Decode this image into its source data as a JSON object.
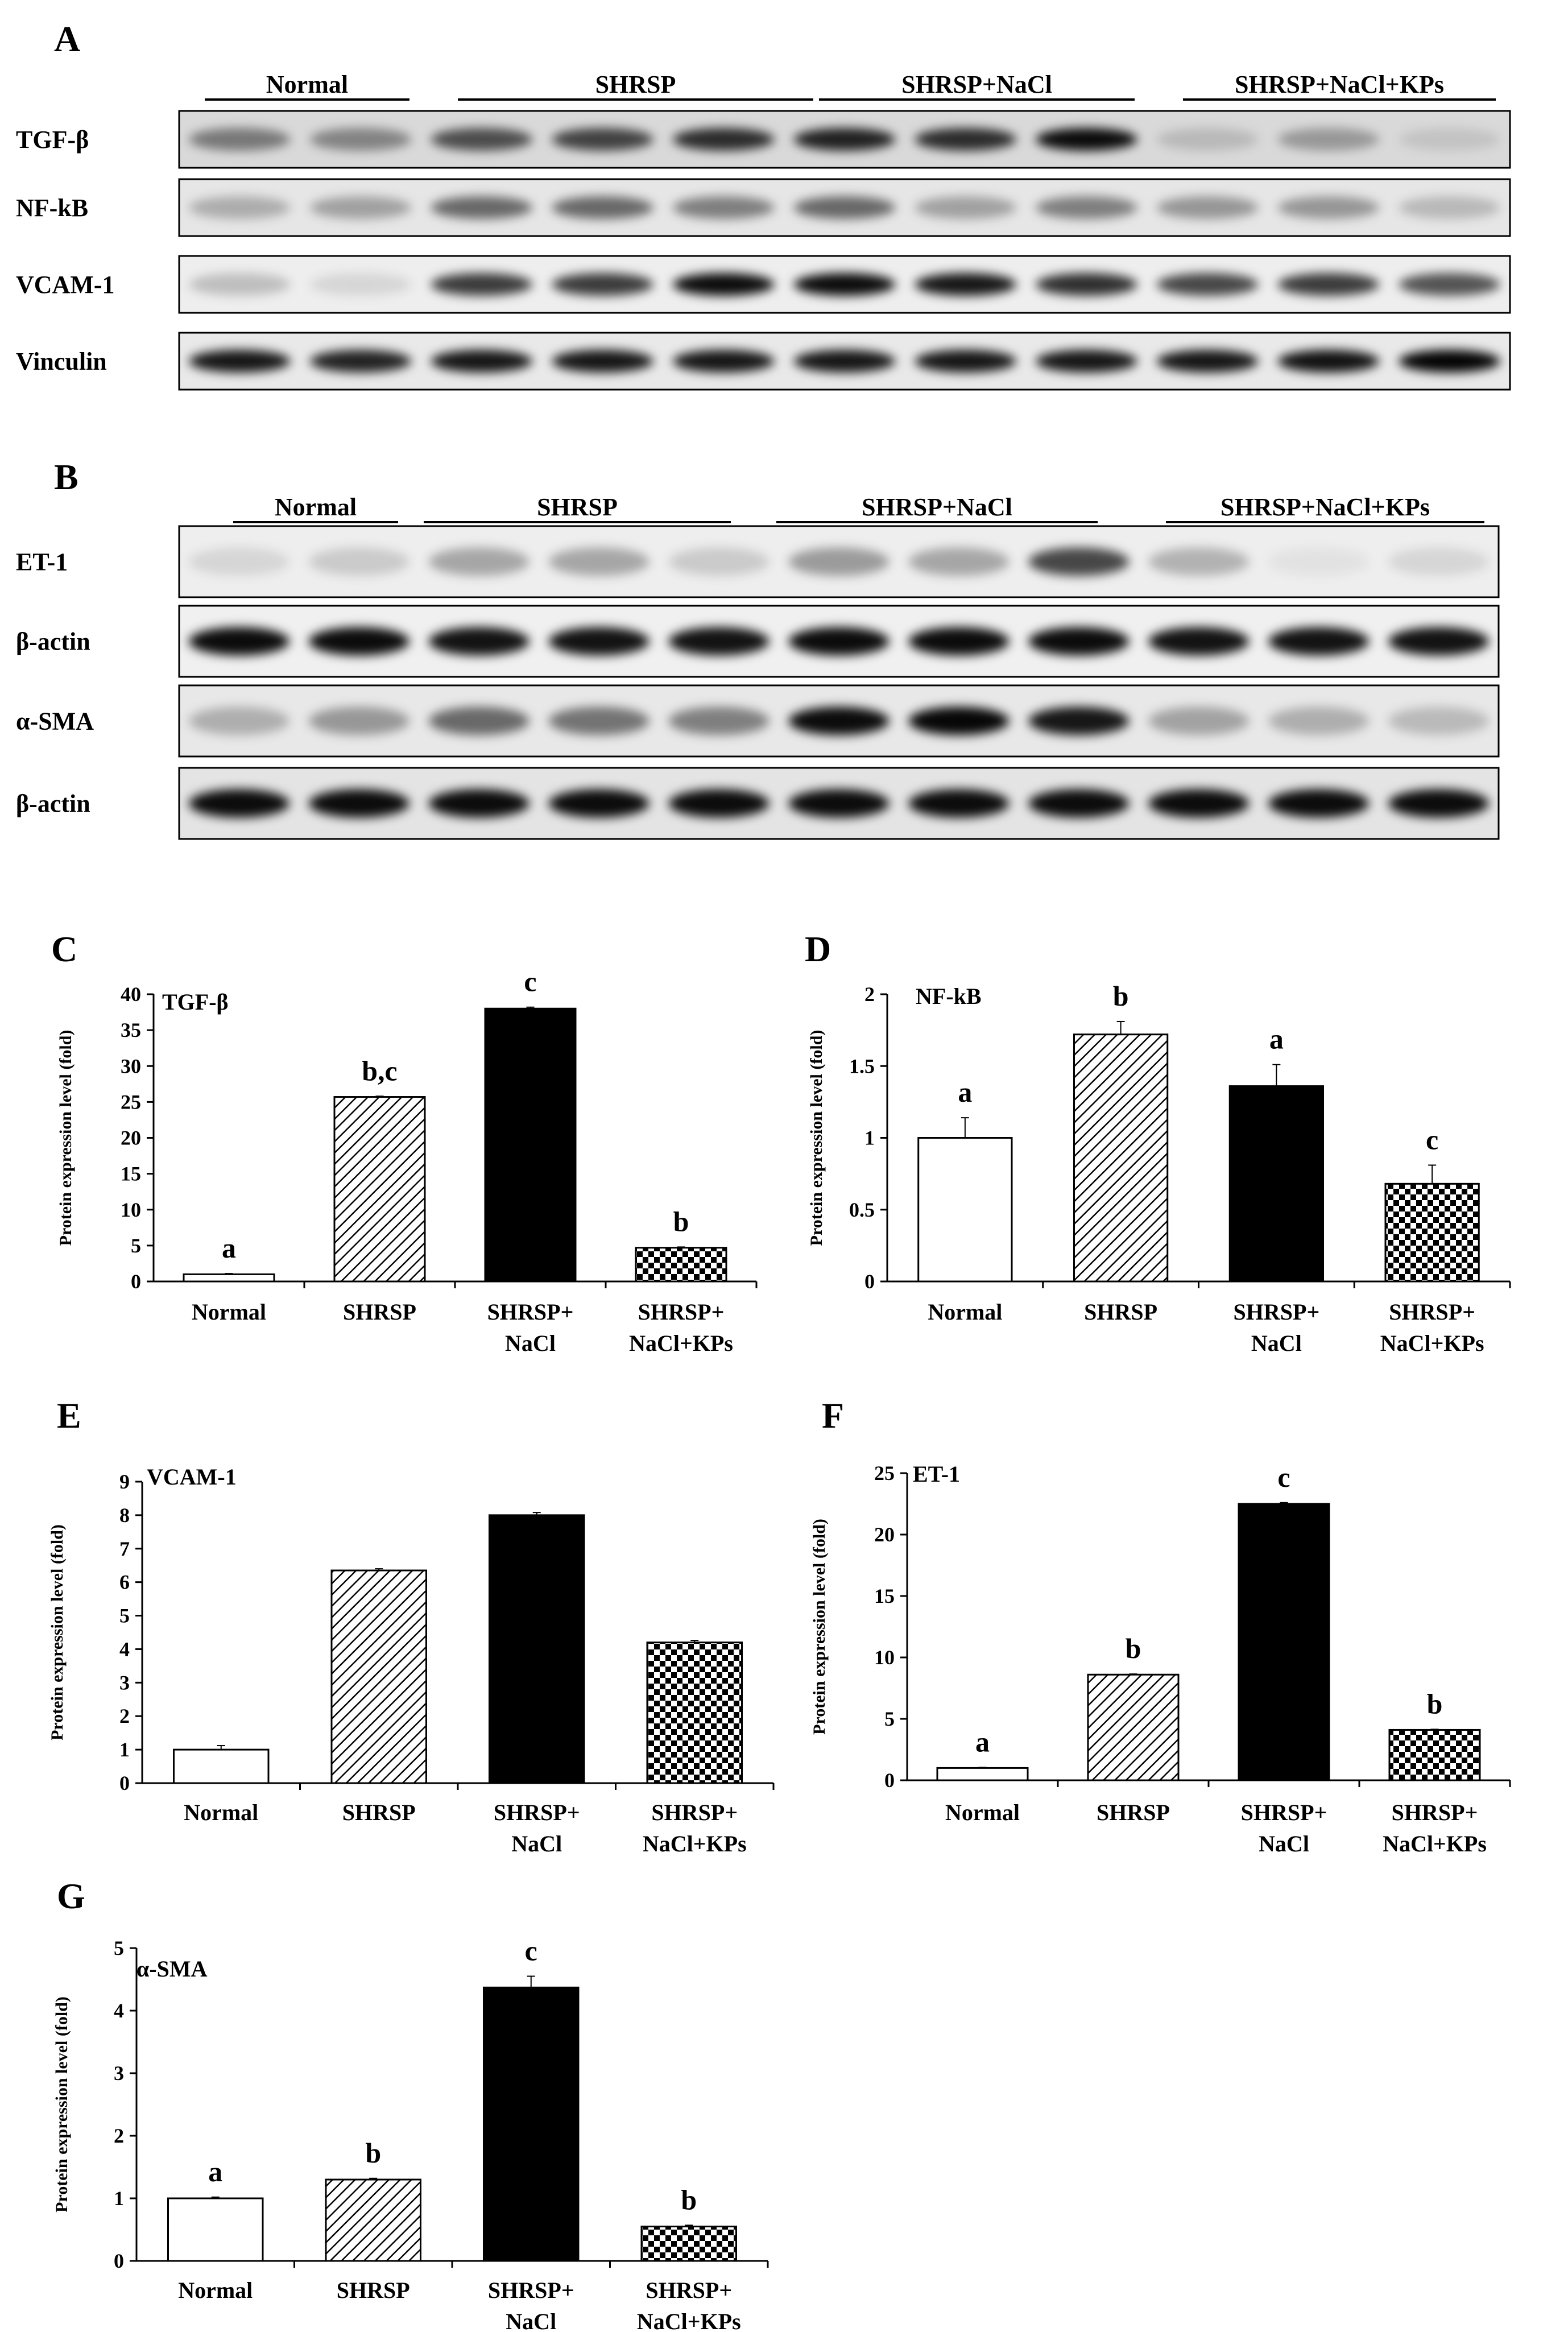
{
  "panel_a": {
    "letter": "A",
    "groups": [
      "Normal",
      "SHRSP",
      "SHRSP+NaCl",
      "SHRSP+NaCl+KPs"
    ],
    "blots": [
      {
        "label": "TGF-β",
        "intensity": [
          0.45,
          0.4,
          0.65,
          0.7,
          0.8,
          0.85,
          0.8,
          0.95,
          0.15,
          0.3,
          0.1
        ],
        "background": "#d9d9d9"
      },
      {
        "label": "NF-kB",
        "intensity": [
          0.25,
          0.3,
          0.55,
          0.55,
          0.45,
          0.55,
          0.3,
          0.45,
          0.35,
          0.35,
          0.2
        ],
        "background": "#e6e6e6"
      },
      {
        "label": "VCAM-1",
        "intensity": [
          0.2,
          0.1,
          0.75,
          0.75,
          0.95,
          0.95,
          0.9,
          0.8,
          0.7,
          0.75,
          0.65
        ],
        "background": "#eeeeee"
      },
      {
        "label": "Vinculin",
        "intensity": [
          0.9,
          0.85,
          0.9,
          0.9,
          0.9,
          0.9,
          0.9,
          0.9,
          0.9,
          0.92,
          0.98
        ],
        "background": "#e9e9e9"
      }
    ]
  },
  "panel_b": {
    "letter": "B",
    "groups": [
      "Normal",
      "SHRSP",
      "SHRSP+NaCl",
      "SHRSP+NaCl+KPs"
    ],
    "blots": [
      {
        "label": "ET-1",
        "intensity": [
          0.1,
          0.15,
          0.3,
          0.3,
          0.15,
          0.35,
          0.3,
          0.7,
          0.25,
          0.05,
          0.1
        ],
        "background": "#eeeeee"
      },
      {
        "label": "β-actin",
        "intensity": [
          0.95,
          0.95,
          0.92,
          0.92,
          0.92,
          0.95,
          0.95,
          0.95,
          0.92,
          0.92,
          0.92
        ],
        "background": "#f0f0f0"
      },
      {
        "label": "α-SMA",
        "intensity": [
          0.25,
          0.35,
          0.55,
          0.5,
          0.45,
          0.95,
          0.97,
          0.9,
          0.3,
          0.25,
          0.2
        ],
        "background": "#e8e8e8"
      },
      {
        "label": "β-actin",
        "intensity": [
          0.95,
          0.95,
          0.95,
          0.95,
          0.95,
          0.95,
          0.95,
          0.95,
          0.95,
          0.95,
          0.95
        ],
        "background": "#e4e4e4"
      }
    ]
  },
  "chart_data": [
    {
      "panel": "C",
      "type": "bar",
      "title": "TGF-β",
      "ylabel": "Protein expression level (fold)",
      "categories": [
        "Normal",
        "SHRSP",
        "SHRSP+\nNaCl",
        "SHRSP+\nNaCl+KPs"
      ],
      "values": [
        1,
        25.7,
        38,
        4.7
      ],
      "errors": [
        0.1,
        0.1,
        0.2,
        0.1
      ],
      "significance": [
        "a",
        "b,c",
        "c",
        "b"
      ],
      "ylim": [
        0,
        40
      ],
      "yticks": [
        0,
        5,
        10,
        15,
        20,
        25,
        30,
        35,
        40
      ]
    },
    {
      "panel": "D",
      "type": "bar",
      "title": "NF-kB",
      "ylabel": "Protein expression level (fold)",
      "categories": [
        "Normal",
        "SHRSP",
        "SHRSP+\nNaCl",
        "SHRSP+\nNaCl+KPs"
      ],
      "values": [
        1,
        1.72,
        1.36,
        0.68
      ],
      "errors": [
        0.14,
        0.09,
        0.15,
        0.13
      ],
      "significance": [
        "a",
        "b",
        "a",
        "c"
      ],
      "ylim": [
        0,
        2
      ],
      "yticks": [
        0,
        0.5,
        1,
        1.5,
        2
      ]
    },
    {
      "panel": "E",
      "type": "bar",
      "title": "VCAM-1",
      "ylabel": "Protein expression level (fold)",
      "categories": [
        "Normal",
        "SHRSP",
        "SHRSP+\nNaCl",
        "SHRSP+\nNaCl+KPs"
      ],
      "values": [
        1,
        6.35,
        8,
        4.2
      ],
      "errors": [
        0.12,
        0.05,
        0.08,
        0.06
      ],
      "significance": [
        "",
        "",
        "",
        ""
      ],
      "ylim": [
        0,
        9
      ],
      "yticks": [
        0,
        1,
        2,
        3,
        4,
        5,
        6,
        7,
        8,
        9
      ]
    },
    {
      "panel": "F",
      "type": "bar",
      "title": "ET-1",
      "ylabel": "Protein expression level (fold)",
      "categories": [
        "Normal",
        "SHRSP",
        "SHRSP+\nNaCl",
        "SHRSP+\nNaCl+KPs"
      ],
      "values": [
        1,
        8.6,
        22.5,
        4.1
      ],
      "errors": [
        0.05,
        0.05,
        0.1,
        0.05
      ],
      "significance": [
        "a",
        "b",
        "c",
        "b"
      ],
      "ylim": [
        0,
        25
      ],
      "yticks": [
        0,
        5,
        10,
        15,
        20,
        25
      ]
    },
    {
      "panel": "G",
      "type": "bar",
      "title": "α-SMA",
      "ylabel": "Protein expression level (fold)",
      "categories": [
        "Normal",
        "SHRSP",
        "SHRSP+\nNaCl",
        "SHRSP+\nNaCl+KPs"
      ],
      "values": [
        1,
        1.3,
        4.37,
        0.55
      ],
      "errors": [
        0.02,
        0.02,
        0.18,
        0.02
      ],
      "significance": [
        "a",
        "b",
        "c",
        "b"
      ],
      "ylim": [
        0,
        5
      ],
      "yticks": [
        0,
        1,
        2,
        3,
        4,
        5
      ]
    }
  ],
  "bar_fills": [
    "white",
    "hatch",
    "black",
    "checker"
  ]
}
